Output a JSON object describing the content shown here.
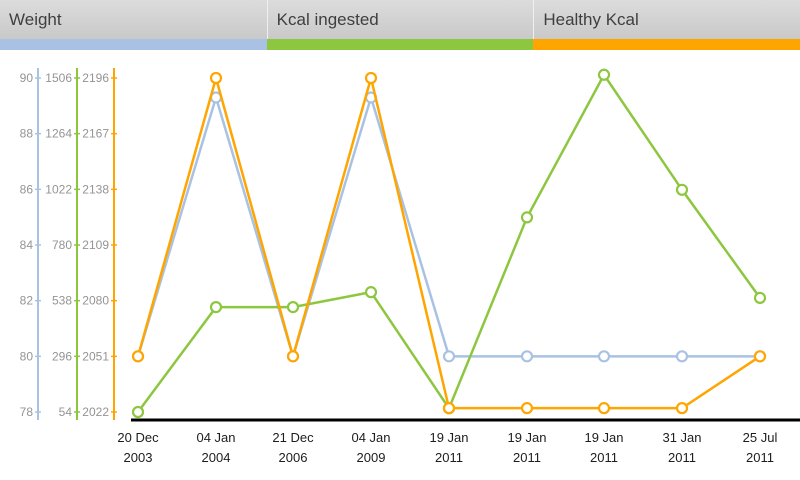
{
  "tabs": [
    {
      "label": "Weight",
      "color": "#a9c2e3"
    },
    {
      "label": "Kcal ingested",
      "color": "#8dc63f"
    },
    {
      "label": "Healthy Kcal",
      "color": "#ffa500"
    }
  ],
  "chart_data": {
    "type": "line",
    "title": "",
    "x_labels": [
      [
        "20 Dec",
        "2003"
      ],
      [
        "04 Jan",
        "2004"
      ],
      [
        "21 Dec",
        "2006"
      ],
      [
        "04 Jan",
        "2009"
      ],
      [
        "19 Jan",
        "2011"
      ],
      [
        "19 Jan",
        "2011"
      ],
      [
        "19 Jan",
        "2011"
      ],
      [
        "31 Jan",
        "2011"
      ],
      [
        "25 Jul",
        "2011"
      ]
    ],
    "axes": [
      {
        "name": "Weight",
        "color": "#a9c2e3",
        "range": [
          78,
          90
        ],
        "ticks": [
          90,
          88,
          86,
          84,
          82,
          80,
          78
        ]
      },
      {
        "name": "Kcal ingested",
        "color": "#8dc63f",
        "range": [
          54,
          1506
        ],
        "ticks": [
          1506,
          1264,
          1022,
          780,
          538,
          296,
          54
        ]
      },
      {
        "name": "Healthy Kcal",
        "color": "#ffa500",
        "range": [
          2022,
          2196
        ],
        "ticks": [
          2196,
          2167,
          2138,
          2109,
          2080,
          2051,
          2022
        ]
      }
    ],
    "series": [
      {
        "name": "Weight",
        "axis": 0,
        "color": "#a9c2e3",
        "values": [
          80,
          89.3,
          80,
          89.3,
          80,
          80,
          80,
          80,
          80
        ]
      },
      {
        "name": "Kcal ingested",
        "axis": 1,
        "color": "#8dc63f",
        "values": [
          54,
          510,
          510,
          575,
          70,
          900,
          1520,
          1020,
          550
        ]
      },
      {
        "name": "Healthy Kcal",
        "axis": 2,
        "color": "#ffa500",
        "values": [
          2051,
          2196,
          2051,
          2196,
          2024,
          2024,
          2024,
          2024,
          2051
        ]
      }
    ],
    "legend_position": "top-tabs",
    "grid": false
  }
}
